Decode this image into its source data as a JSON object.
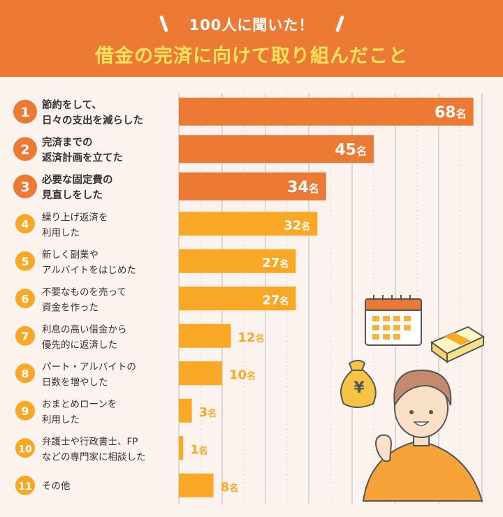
{
  "header": {
    "subtitle": "100人に聞いた！",
    "title": "借金の完済に向けて取り組んだこと"
  },
  "colors": {
    "header_bg": "#ec7a34",
    "title": "#ffe45c",
    "top3": "#ec7a34",
    "others": "#f9a825",
    "background": "#fdf3ee"
  },
  "chart_data": {
    "type": "bar",
    "orientation": "horizontal",
    "unit": "名",
    "xlim": [
      0,
      70
    ],
    "grid": true,
    "categories": [
      {
        "rank": "1",
        "label": [
          "節約をして、",
          "日々の支出を減らした"
        ],
        "value": 68,
        "highlight": true
      },
      {
        "rank": "2",
        "label": [
          "完済までの",
          "返済計画を立てた"
        ],
        "value": 45,
        "highlight": true
      },
      {
        "rank": "3",
        "label": [
          "必要な固定費の",
          "見直しをした"
        ],
        "value": 34,
        "highlight": true
      },
      {
        "rank": "4",
        "label": [
          "繰り上げ返済を",
          "利用した"
        ],
        "value": 32,
        "highlight": false
      },
      {
        "rank": "5",
        "label": [
          "新しく副業や",
          "アルバイトをはじめた"
        ],
        "value": 27,
        "highlight": false
      },
      {
        "rank": "6",
        "label": [
          "不要なものを売って",
          "資金を作った"
        ],
        "value": 27,
        "highlight": false
      },
      {
        "rank": "7",
        "label": [
          "利息の高い借金から",
          "優先的に返済した"
        ],
        "value": 12,
        "highlight": false
      },
      {
        "rank": "8",
        "label": [
          "パート・アルバイトの",
          "日数を増やした"
        ],
        "value": 10,
        "highlight": false
      },
      {
        "rank": "9",
        "label": [
          "おまとめローンを",
          "利用した"
        ],
        "value": 3,
        "highlight": false
      },
      {
        "rank": "10",
        "label": [
          "弁護士や行政書士、FP",
          "などの専門家に相談した"
        ],
        "value": 1,
        "highlight": false
      },
      {
        "rank": "11",
        "label": [
          "その他"
        ],
        "value": 8,
        "highlight": false
      }
    ]
  },
  "illustration": {
    "yen_symbol": "¥"
  }
}
